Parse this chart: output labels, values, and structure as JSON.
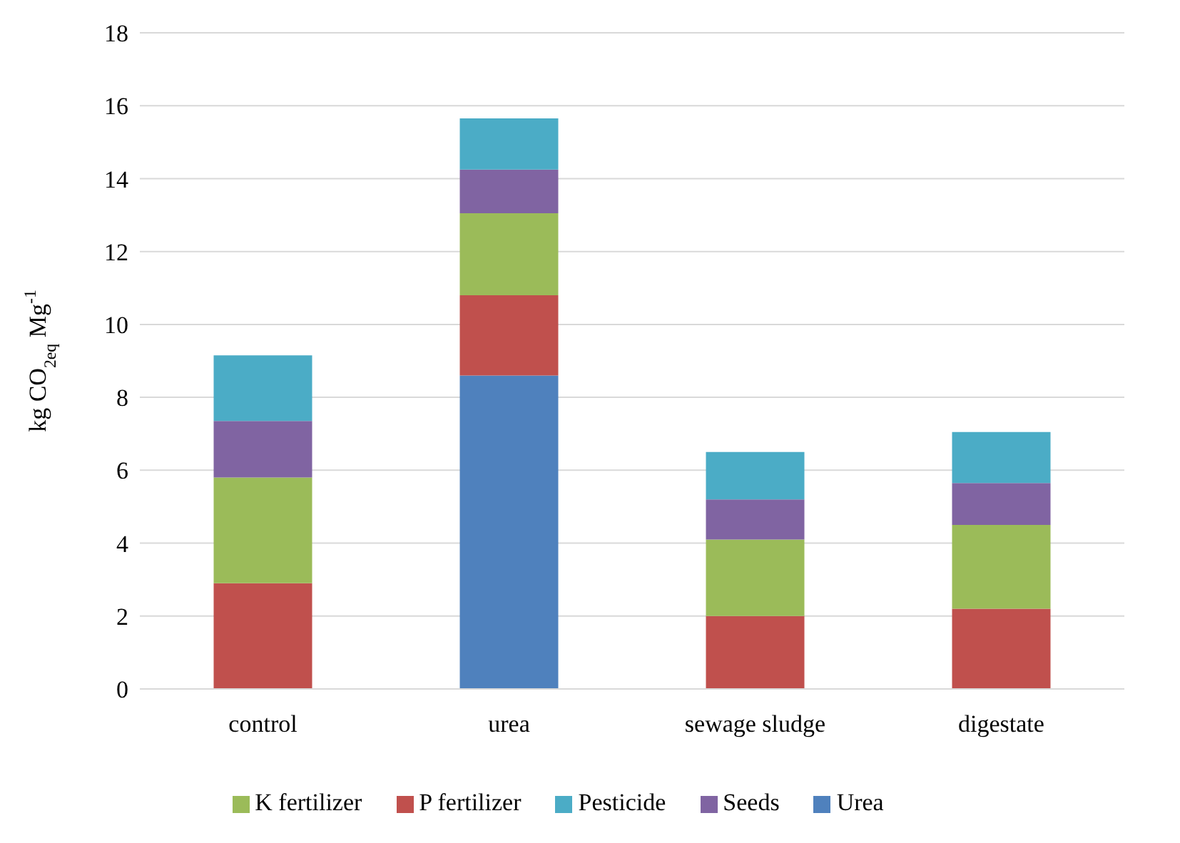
{
  "chart_data": {
    "type": "bar",
    "stacked": true,
    "ylabel": "kg CO$_{2eq}$ Mg$^{-1}$",
    "categories": [
      "control",
      "urea",
      "sewage sludge",
      "digestate"
    ],
    "series": [
      {
        "name": "Urea",
        "color": "#4f81bd",
        "values": [
          null,
          8.6,
          null,
          null
        ]
      },
      {
        "name": "P fertilizer",
        "color": "#c0504d",
        "values": [
          2.9,
          2.2,
          2.0,
          2.2
        ]
      },
      {
        "name": "K fertilizer",
        "color": "#9bbb59",
        "values": [
          2.9,
          2.25,
          2.1,
          2.3
        ]
      },
      {
        "name": "Seeds",
        "color": "#8064a2",
        "values": [
          1.55,
          1.2,
          1.1,
          1.15
        ]
      },
      {
        "name": "Pesticide",
        "color": "#4bacc6",
        "values": [
          1.8,
          1.4,
          1.3,
          1.4
        ]
      }
    ],
    "ylim": [
      0,
      18
    ],
    "yticks": [
      0,
      2,
      4,
      6,
      8,
      10,
      12,
      14,
      16,
      18
    ],
    "grid": "y",
    "legend": "bottom"
  }
}
